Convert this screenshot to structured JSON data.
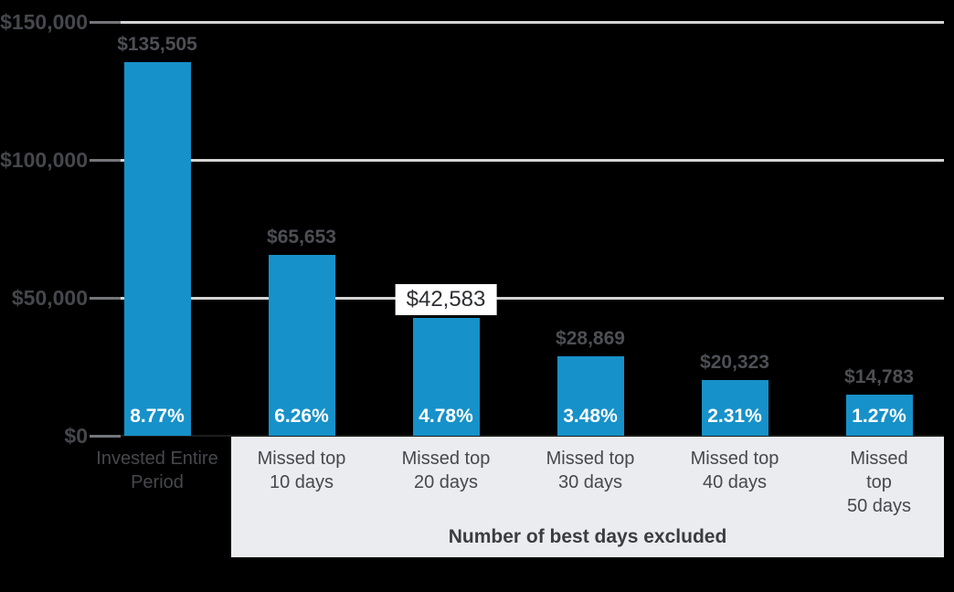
{
  "chart_data": {
    "type": "bar",
    "categories": [
      "Invested Entire\nPeriod",
      "Missed top\n10 days",
      "Missed top\n20 days",
      "Missed top\n30 days",
      "Missed top\n40 days",
      "Missed top\n50 days"
    ],
    "values": [
      135505,
      65653,
      42583,
      28869,
      20323,
      14783
    ],
    "value_labels": [
      "$135,505",
      "$65,653",
      "$42,583",
      "$28,869",
      "$20,323",
      "$14,783"
    ],
    "bar_inner_labels": [
      "8.77%",
      "6.26%",
      "4.78%",
      "3.48%",
      "2.31%",
      "1.27%"
    ],
    "highlighted_bar_index": 2,
    "xlabel": "Number of best days excluded",
    "ylim": [
      0,
      150000
    ],
    "yticks": [
      0,
      50000,
      100000,
      150000
    ],
    "ytick_labels": [
      "$0",
      "$50,000",
      "$100,000",
      "$150,000"
    ],
    "grid": "horizontal",
    "legend": "none",
    "colors": {
      "bar": "#1791c9",
      "background": "#000000",
      "gridline": "#d4d4d4",
      "axis_label": "#45474c",
      "value_label": "#4d4f54",
      "bar_inner_label": "#ffffff",
      "xband_background": "#ebecef",
      "highlight_background": "#ffffff",
      "highlight_text": "#2d2f33"
    }
  }
}
